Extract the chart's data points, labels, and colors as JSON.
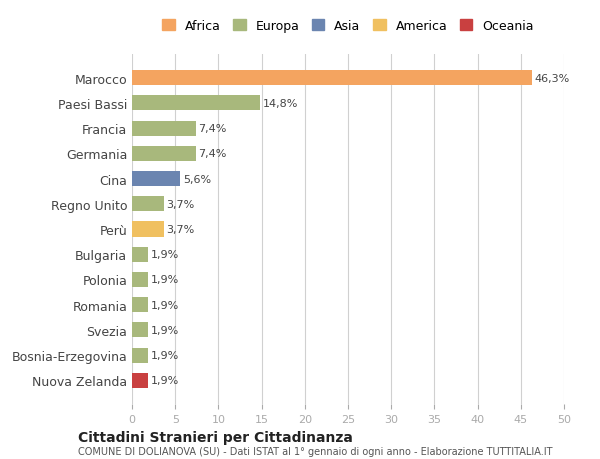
{
  "countries": [
    "Marocco",
    "Paesi Bassi",
    "Francia",
    "Germania",
    "Cina",
    "Regno Unito",
    "Perù",
    "Bulgaria",
    "Polonia",
    "Romania",
    "Svezia",
    "Bosnia-Erzegovina",
    "Nuova Zelanda"
  ],
  "values": [
    46.3,
    14.8,
    7.4,
    7.4,
    5.6,
    3.7,
    3.7,
    1.9,
    1.9,
    1.9,
    1.9,
    1.9,
    1.9
  ],
  "labels": [
    "46,3%",
    "14,8%",
    "7,4%",
    "7,4%",
    "5,6%",
    "3,7%",
    "3,7%",
    "1,9%",
    "1,9%",
    "1,9%",
    "1,9%",
    "1,9%",
    "1,9%"
  ],
  "colors": [
    "#F4A460",
    "#A8B87C",
    "#A8B87C",
    "#A8B87C",
    "#6B85B0",
    "#A8B87C",
    "#F0C060",
    "#A8B87C",
    "#A8B87C",
    "#A8B87C",
    "#A8B87C",
    "#A8B87C",
    "#C94040"
  ],
  "legend": [
    {
      "label": "Africa",
      "color": "#F4A460"
    },
    {
      "label": "Europa",
      "color": "#A8B87C"
    },
    {
      "label": "Asia",
      "color": "#6B85B0"
    },
    {
      "label": "America",
      "color": "#F0C060"
    },
    {
      "label": "Oceania",
      "color": "#C94040"
    }
  ],
  "title1": "Cittadini Stranieri per Cittadinanza",
  "title2": "COMUNE DI DOLIANOVA (SU) - Dati ISTAT al 1° gennaio di ogni anno - Elaborazione TUTTITALIA.IT",
  "xlim": [
    0,
    50
  ],
  "xticks": [
    0,
    5,
    10,
    15,
    20,
    25,
    30,
    35,
    40,
    45,
    50
  ],
  "background_color": "#ffffff",
  "grid_color": "#d0d0d0"
}
